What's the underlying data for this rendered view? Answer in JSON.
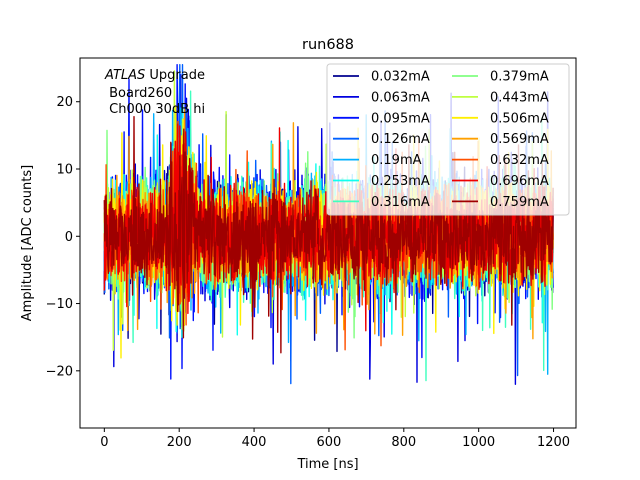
{
  "chart_data": {
    "type": "line",
    "title": "run688",
    "xlabel": "Time [ns]",
    "ylabel": "Amplitude [ADC counts]",
    "xlim": [
      -65,
      1260
    ],
    "ylim": [
      -28.5,
      26.5
    ],
    "xticks": [
      0,
      200,
      400,
      600,
      800,
      1000,
      1200
    ],
    "yticks": [
      -20,
      -10,
      0,
      10,
      20
    ],
    "grid": false,
    "legend_position": "upper right",
    "legend_columns": 2,
    "annotation": {
      "italic": "ATLAS",
      "rest": " Upgrade",
      "line2": " Board260",
      "line3": " Ch000 30dB hi"
    },
    "x_range": [
      0,
      1200
    ],
    "series": [
      {
        "name": "0.032mA",
        "color": "#00008f",
        "amplitude": 10,
        "peak": 20
      },
      {
        "name": "0.063mA",
        "color": "#0000df",
        "amplitude": 12,
        "peak": 23
      },
      {
        "name": "0.095mA",
        "color": "#0010ff",
        "amplitude": 12,
        "peak": 22
      },
      {
        "name": "0.126mA",
        "color": "#0060ff",
        "amplitude": 11,
        "peak": 20
      },
      {
        "name": "0.19mA",
        "color": "#00b0ff",
        "amplitude": 11,
        "peak": 18
      },
      {
        "name": "0.253mA",
        "color": "#10ffef",
        "amplitude": 11,
        "peak": 16
      },
      {
        "name": "0.316mA",
        "color": "#40ffbf",
        "amplitude": 11,
        "peak": 15
      },
      {
        "name": "0.379mA",
        "color": "#80ff80",
        "amplitude": 10,
        "peak": 15
      },
      {
        "name": "0.443mA",
        "color": "#bfff40",
        "amplitude": 10,
        "peak": 15
      },
      {
        "name": "0.506mA",
        "color": "#ffef00",
        "amplitude": 10,
        "peak": 16
      },
      {
        "name": "0.569mA",
        "color": "#ffa000",
        "amplitude": 9,
        "peak": 16
      },
      {
        "name": "0.632mA",
        "color": "#ff5000",
        "amplitude": 9,
        "peak": 16
      },
      {
        "name": "0.696mA",
        "color": "#ef0000",
        "amplitude": 9,
        "peak": 16
      },
      {
        "name": "0.759mA",
        "color": "#9f0000",
        "amplitude": 9,
        "peak": 16
      }
    ]
  }
}
